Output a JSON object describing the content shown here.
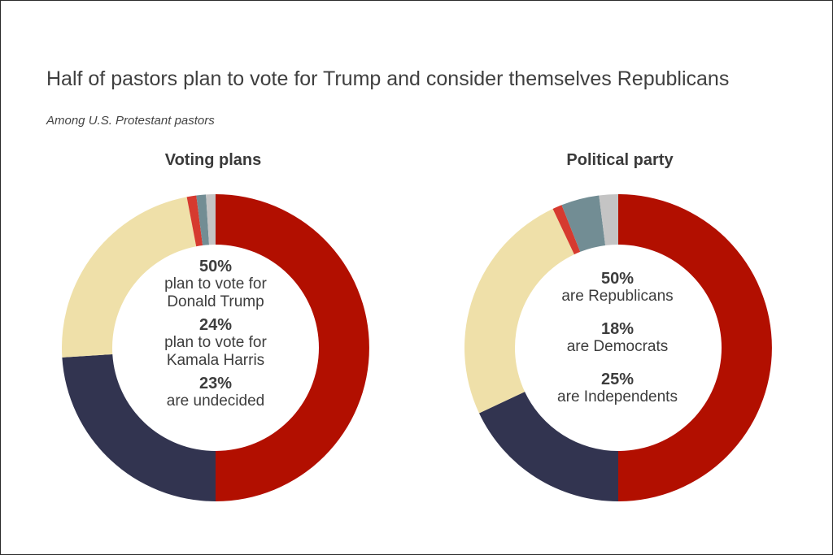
{
  "header": {
    "title": "Half of pastors plan to vote for Trump and consider themselves Republicans",
    "subtitle": "Among U.S. Protestant pastors"
  },
  "colors": {
    "red": "#b20f00",
    "navy": "#323450",
    "cream": "#efe0a9",
    "bright_red": "#d63a2f",
    "slate": "#728d94",
    "gray": "#c4c4c4"
  },
  "charts": {
    "voting": {
      "title": "Voting plans",
      "stats": [
        {
          "pct": "50%",
          "line1": "plan to vote for",
          "line2": "Donald Trump"
        },
        {
          "pct": "24%",
          "line1": "plan to vote for",
          "line2": "Kamala Harris"
        },
        {
          "pct": "23%",
          "line1": "are undecided",
          "line2": ""
        }
      ]
    },
    "party": {
      "title": "Political party",
      "stats": [
        {
          "pct": "50%",
          "line1": "are Republicans"
        },
        {
          "pct": "18%",
          "line1": "are Democrats"
        },
        {
          "pct": "25%",
          "line1": "are Independents"
        }
      ]
    }
  },
  "chart_data": [
    {
      "type": "pie",
      "title": "Voting plans",
      "values": [
        50,
        24,
        23,
        1,
        1,
        1
      ],
      "colors": [
        "#b20f00",
        "#323450",
        "#efe0a9",
        "#d63a2f",
        "#728d94",
        "#c4c4c4"
      ]
    },
    {
      "type": "pie",
      "title": "Political party",
      "values": [
        50,
        18,
        25,
        1,
        4,
        2
      ],
      "colors": [
        "#b20f00",
        "#323450",
        "#efe0a9",
        "#d63a2f",
        "#728d94",
        "#c4c4c4"
      ]
    }
  ]
}
